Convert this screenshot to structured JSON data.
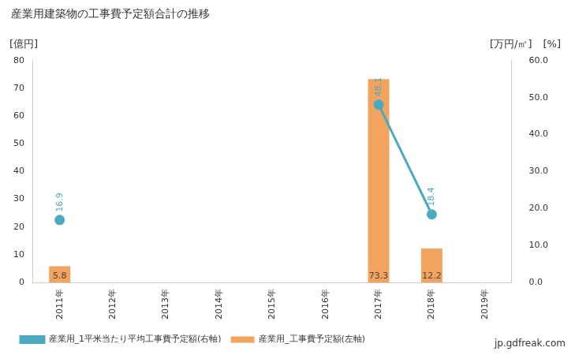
{
  "chart_data": {
    "type": "bar",
    "title": "産業用建築物の工事費予定額合計の推移",
    "y_label": "[億円]",
    "y2_labels": [
      "[万円/㎡]",
      "[%]"
    ],
    "credit": "jp.gdfreak.com",
    "categories": [
      "2011年",
      "2012年",
      "2013年",
      "2014年",
      "2015年",
      "2016年",
      "2017年",
      "2018年",
      "2019年"
    ],
    "series": [
      {
        "name": "産業用_工事費予定額(左軸)",
        "type": "bar",
        "color": "#f2a45e",
        "values": [
          5.8,
          null,
          null,
          null,
          null,
          null,
          73.3,
          12.2,
          null
        ]
      },
      {
        "name": "産業用_1平米当たり平均工事費予定額(右軸)",
        "type": "line",
        "axis": "y2",
        "color": "#4aaac2",
        "marker": "circle",
        "values": [
          16.9,
          null,
          null,
          null,
          null,
          null,
          48.1,
          18.4,
          null
        ]
      }
    ],
    "ylim": [
      0,
      80
    ],
    "yticks": [
      0,
      10,
      20,
      30,
      40,
      50,
      60,
      70,
      80
    ],
    "y2lim": [
      0,
      60
    ],
    "y2ticks": [
      {
        "value": 0,
        "label": "0.0"
      },
      {
        "value": 10,
        "label": "10.0"
      },
      {
        "value": 20,
        "label": "20.0"
      },
      {
        "value": 30,
        "label": "30.0"
      },
      {
        "value": 40,
        "label": "40.0"
      },
      {
        "value": 50,
        "label": "50.0"
      },
      {
        "value": 60,
        "label": "60.0"
      }
    ],
    "grid": false,
    "legend": "bottom",
    "data_labels": true
  }
}
